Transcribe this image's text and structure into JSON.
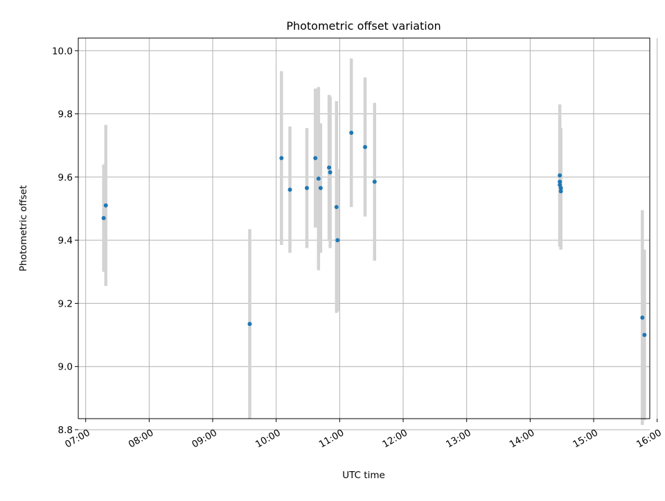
{
  "chart_data": {
    "type": "scatter",
    "title": "Photometric offset variation",
    "xlabel": "UTC time",
    "ylabel": "Photometric offset",
    "x_tick_labels": [
      "07:00",
      "08:00",
      "09:00",
      "10:00",
      "11:00",
      "12:00",
      "13:00",
      "14:00",
      "15:00",
      "16:00"
    ],
    "y_tick_labels": [
      "8.8",
      "9.0",
      "9.2",
      "9.4",
      "9.6",
      "9.8",
      "10.0"
    ],
    "xlim": [
      "06:53",
      "15:53"
    ],
    "ylim": [
      8.835,
      10.04
    ],
    "grid": true,
    "marker_color": "#1f77b4",
    "errorbar_color": "#d3d3d3",
    "points": [
      {
        "x": "07:17",
        "y": 9.47,
        "yerr": 0.17
      },
      {
        "x": "07:19",
        "y": 9.51,
        "yerr": 0.255
      },
      {
        "x": "09:35",
        "y": 9.135,
        "yerr": 0.3
      },
      {
        "x": "10:05",
        "y": 9.66,
        "yerr": 0.275
      },
      {
        "x": "10:13",
        "y": 9.56,
        "yerr": 0.2
      },
      {
        "x": "10:29",
        "y": 9.565,
        "yerr": 0.19
      },
      {
        "x": "10:37",
        "y": 9.66,
        "yerr": 0.22
      },
      {
        "x": "10:40",
        "y": 9.595,
        "yerr": 0.29
      },
      {
        "x": "10:42",
        "y": 9.565,
        "yerr": 0.205
      },
      {
        "x": "10:50",
        "y": 9.63,
        "yerr": 0.23
      },
      {
        "x": "10:51",
        "y": 9.615,
        "yerr": 0.24
      },
      {
        "x": "10:57",
        "y": 9.505,
        "yerr": 0.335
      },
      {
        "x": "10:58",
        "y": 9.4,
        "yerr": 0.225
      },
      {
        "x": "11:11",
        "y": 9.74,
        "yerr": 0.235
      },
      {
        "x": "11:24",
        "y": 9.695,
        "yerr": 0.22
      },
      {
        "x": "11:33",
        "y": 9.585,
        "yerr": 0.25
      },
      {
        "x": "14:28",
        "y": 9.605,
        "yerr": 0.225
      },
      {
        "x": "14:28",
        "y": 9.585,
        "yerr": 0.2
      },
      {
        "x": "14:28",
        "y": 9.575,
        "yerr": 0.195
      },
      {
        "x": "14:29",
        "y": 9.565,
        "yerr": 0.19
      },
      {
        "x": "14:29",
        "y": 9.555,
        "yerr": 0.185
      },
      {
        "x": "15:46",
        "y": 9.155,
        "yerr": 0.34
      },
      {
        "x": "15:48",
        "y": 9.1,
        "yerr": 0.27
      }
    ]
  }
}
